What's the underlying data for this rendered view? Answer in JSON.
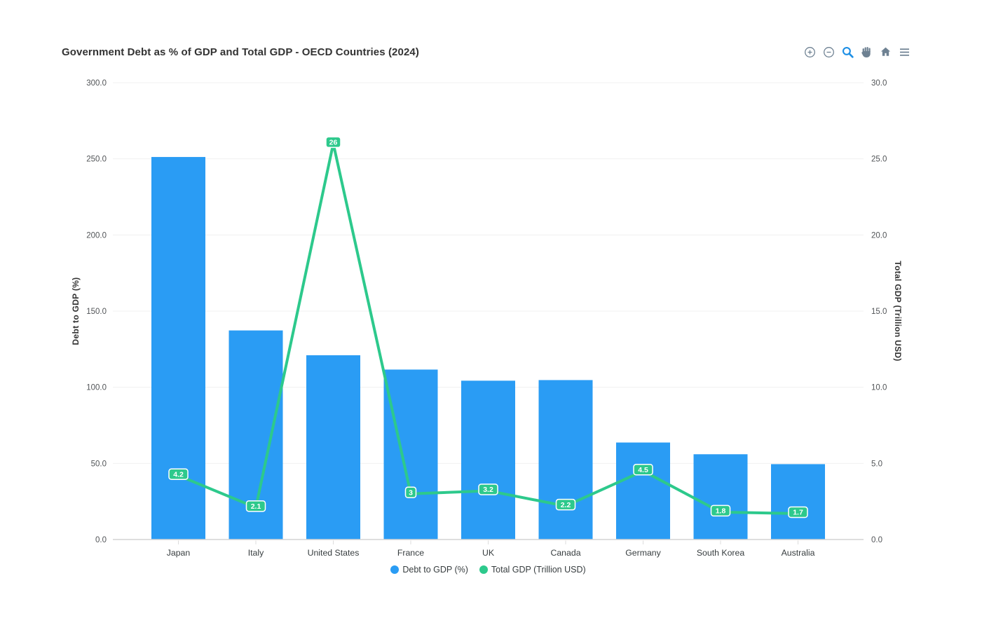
{
  "title": "Government Debt as % of GDP and Total GDP - OECD Countries (2024)",
  "toolbar": {
    "icons": [
      {
        "name": "zoom-in-icon"
      },
      {
        "name": "zoom-out-icon"
      },
      {
        "name": "selection-zoom-icon",
        "active": true
      },
      {
        "name": "pan-icon"
      },
      {
        "name": "home-icon"
      },
      {
        "name": "menu-icon"
      }
    ]
  },
  "colors": {
    "bar": "#2A9CF4",
    "line": "#2DC98C",
    "datalabel_bg": "#2DC98C",
    "datalabel_text": "#ffffff",
    "grid": "#f0f0f0",
    "axis_border": "#d4d4d4",
    "x_tick": "#dcdcdc",
    "tick_label": "#515457",
    "category_label": "#373d3f",
    "title_text": "#333333",
    "toolbar_icon": "#6E8192",
    "toolbar_active": "#1E8FE5",
    "background": "#ffffff"
  },
  "chart_data": {
    "type": "combo-bar-line",
    "title": "Government Debt as % of GDP and Total GDP - OECD Countries (2024)",
    "categories": [
      "Japan",
      "Italy",
      "United States",
      "France",
      "UK",
      "Canada",
      "Germany",
      "South Korea",
      "Australia"
    ],
    "series": [
      {
        "name": "Debt to GDP (%)",
        "type": "bar",
        "yaxis": "left",
        "color": "#2A9CF4",
        "values": [
          251.2,
          137.3,
          121.0,
          111.6,
          104.3,
          104.7,
          63.7,
          56.0,
          49.5
        ]
      },
      {
        "name": "Total GDP (Trillion USD)",
        "type": "line",
        "yaxis": "right",
        "color": "#2DC98C",
        "values": [
          4.2,
          2.1,
          26,
          3,
          3.2,
          2.2,
          4.5,
          1.8,
          1.7
        ],
        "data_labels": [
          "4.2",
          "2.1",
          "26",
          "3",
          "3.2",
          "2.2",
          "4.5",
          "1.8",
          "1.7"
        ]
      }
    ],
    "yaxis_left": {
      "title": "Debt to GDP (%)",
      "min": 0,
      "max": 300,
      "ticks": [
        "0.0",
        "50.0",
        "100.0",
        "150.0",
        "200.0",
        "250.0",
        "300.0"
      ]
    },
    "yaxis_right": {
      "title": "Total GDP (Trillion USD)",
      "min": 0,
      "max": 30,
      "ticks": [
        "0.0",
        "5.0",
        "10.0",
        "15.0",
        "20.0",
        "25.0",
        "30.0"
      ]
    },
    "legend": {
      "position": "bottom",
      "items": [
        {
          "label": "Debt to GDP (%)",
          "color": "#2A9CF4"
        },
        {
          "label": "Total GDP (Trillion USD)",
          "color": "#2DC98C"
        }
      ]
    },
    "grid": true
  }
}
